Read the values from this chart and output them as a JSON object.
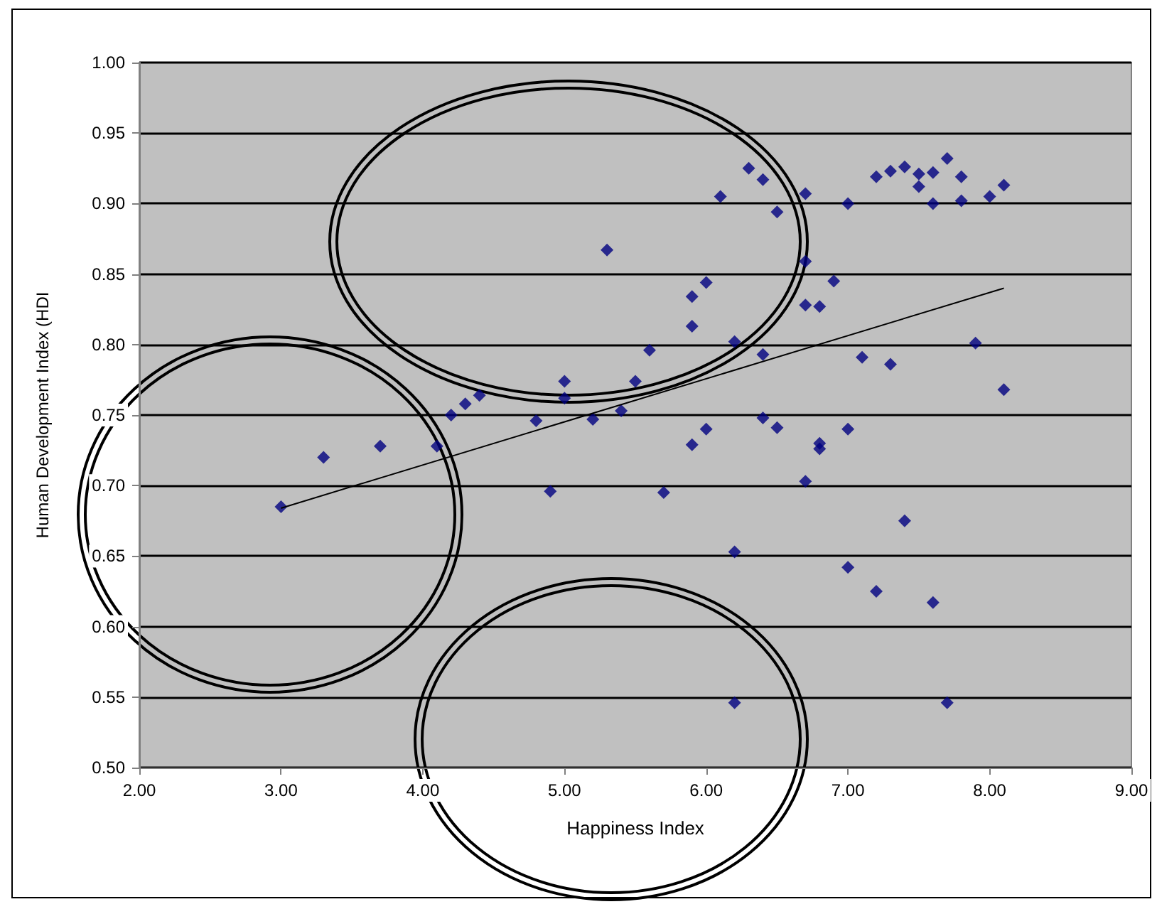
{
  "chart_data": {
    "type": "scatter",
    "xlabel": "Happiness Index",
    "ylabel": "Human Development Index (HDI",
    "xlim": [
      2,
      9
    ],
    "ylim": [
      0.5,
      1
    ],
    "xticks": [
      {
        "value": 2,
        "label": "2.00"
      },
      {
        "value": 3,
        "label": "3.00"
      },
      {
        "value": 4,
        "label": "4.00"
      },
      {
        "value": 5,
        "label": "5.00"
      },
      {
        "value": 6,
        "label": "6.00"
      },
      {
        "value": 7,
        "label": "7.00"
      },
      {
        "value": 8,
        "label": "8.00"
      },
      {
        "value": 9,
        "label": "9.00"
      }
    ],
    "yticks": [
      {
        "value": 0.5,
        "label": "0.50"
      },
      {
        "value": 0.55,
        "label": "0.55"
      },
      {
        "value": 0.6,
        "label": "0.60"
      },
      {
        "value": 0.65,
        "label": "0.65"
      },
      {
        "value": 0.7,
        "label": "0.70"
      },
      {
        "value": 0.75,
        "label": "0.75"
      },
      {
        "value": 0.8,
        "label": "0.80"
      },
      {
        "value": 0.85,
        "label": "0.85"
      },
      {
        "value": 0.9,
        "label": "0.90"
      },
      {
        "value": 0.95,
        "label": "0.95"
      },
      {
        "value": 1,
        "label": "1.00"
      }
    ],
    "grid": "y",
    "marker": "diamond",
    "series": [
      {
        "color": "#000080",
        "x": [
          3.0,
          3.3,
          3.7,
          4.1,
          4.2,
          4.3,
          4.4,
          4.8,
          4.9,
          5.0,
          5.0,
          5.2,
          5.3,
          5.4,
          5.5,
          5.6,
          5.7,
          5.9,
          5.9,
          5.9,
          6.0,
          6.0,
          6.1,
          6.2,
          6.2,
          6.2,
          6.3,
          6.4,
          6.4,
          6.4,
          6.5,
          6.5,
          6.7,
          6.7,
          6.7,
          6.7,
          6.8,
          6.8,
          6.8,
          6.9,
          7.0,
          7.0,
          7.0,
          7.1,
          7.2,
          7.2,
          7.3,
          7.3,
          7.4,
          7.4,
          7.5,
          7.5,
          7.6,
          7.6,
          7.6,
          7.7,
          7.7,
          7.8,
          7.8,
          7.9,
          8.0,
          8.1,
          8.1
        ],
        "values": [
          0.685,
          0.72,
          0.728,
          0.728,
          0.75,
          0.758,
          0.764,
          0.746,
          0.696,
          0.774,
          0.762,
          0.747,
          0.867,
          0.753,
          0.774,
          0.796,
          0.695,
          0.834,
          0.813,
          0.729,
          0.844,
          0.74,
          0.905,
          0.653,
          0.802,
          0.546,
          0.925,
          0.917,
          0.793,
          0.748,
          0.894,
          0.741,
          0.907,
          0.859,
          0.828,
          0.703,
          0.827,
          0.73,
          0.726,
          0.845,
          0.9,
          0.74,
          0.642,
          0.791,
          0.919,
          0.625,
          0.786,
          0.923,
          0.926,
          0.675,
          0.921,
          0.912,
          0.9,
          0.617,
          0.922,
          0.932,
          0.546,
          0.919,
          0.902,
          0.801,
          0.905,
          0.913,
          0.768
        ]
      },
      {
        "type": "line",
        "color": "#000000",
        "marker": "none",
        "x": [
          3.0,
          8.1
        ],
        "values": [
          0.684,
          0.84
        ]
      }
    ]
  }
}
